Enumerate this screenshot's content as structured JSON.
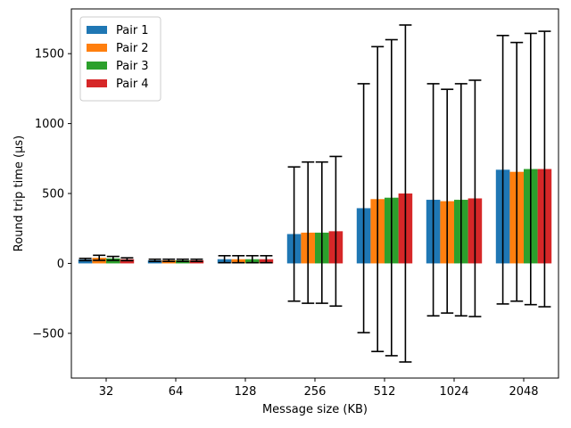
{
  "chart_data": {
    "type": "bar",
    "xlabel": "Message size (KB)",
    "ylabel": "Round trip time (μs)",
    "ylim": [
      -820,
      1820
    ],
    "yticks": [
      -500,
      0,
      500,
      1000,
      1500
    ],
    "ytick_labels": [
      "−500",
      "0",
      "500",
      "1000",
      "1500"
    ],
    "categories": [
      "32",
      "64",
      "128",
      "256",
      "512",
      "1024",
      "2048"
    ],
    "legend_placement": "top-left",
    "error_bars": true,
    "series": [
      {
        "name": "Pair 1",
        "color": "#1f77b4",
        "values": [
          28,
          22,
          30,
          210,
          395,
          455,
          670
        ],
        "errors": [
          8,
          8,
          25,
          480,
          890,
          830,
          960
        ]
      },
      {
        "name": "Pair 2",
        "color": "#ff7f0e",
        "values": [
          40,
          22,
          30,
          220,
          460,
          445,
          655
        ],
        "errors": [
          18,
          8,
          25,
          505,
          1090,
          800,
          925
        ]
      },
      {
        "name": "Pair 3",
        "color": "#2ca02c",
        "values": [
          36,
          22,
          30,
          220,
          470,
          455,
          675
        ],
        "errors": [
          14,
          8,
          25,
          505,
          1130,
          830,
          970
        ]
      },
      {
        "name": "Pair 4",
        "color": "#d62728",
        "values": [
          30,
          22,
          30,
          230,
          500,
          465,
          675
        ],
        "errors": [
          10,
          8,
          25,
          535,
          1205,
          845,
          985
        ]
      }
    ]
  }
}
